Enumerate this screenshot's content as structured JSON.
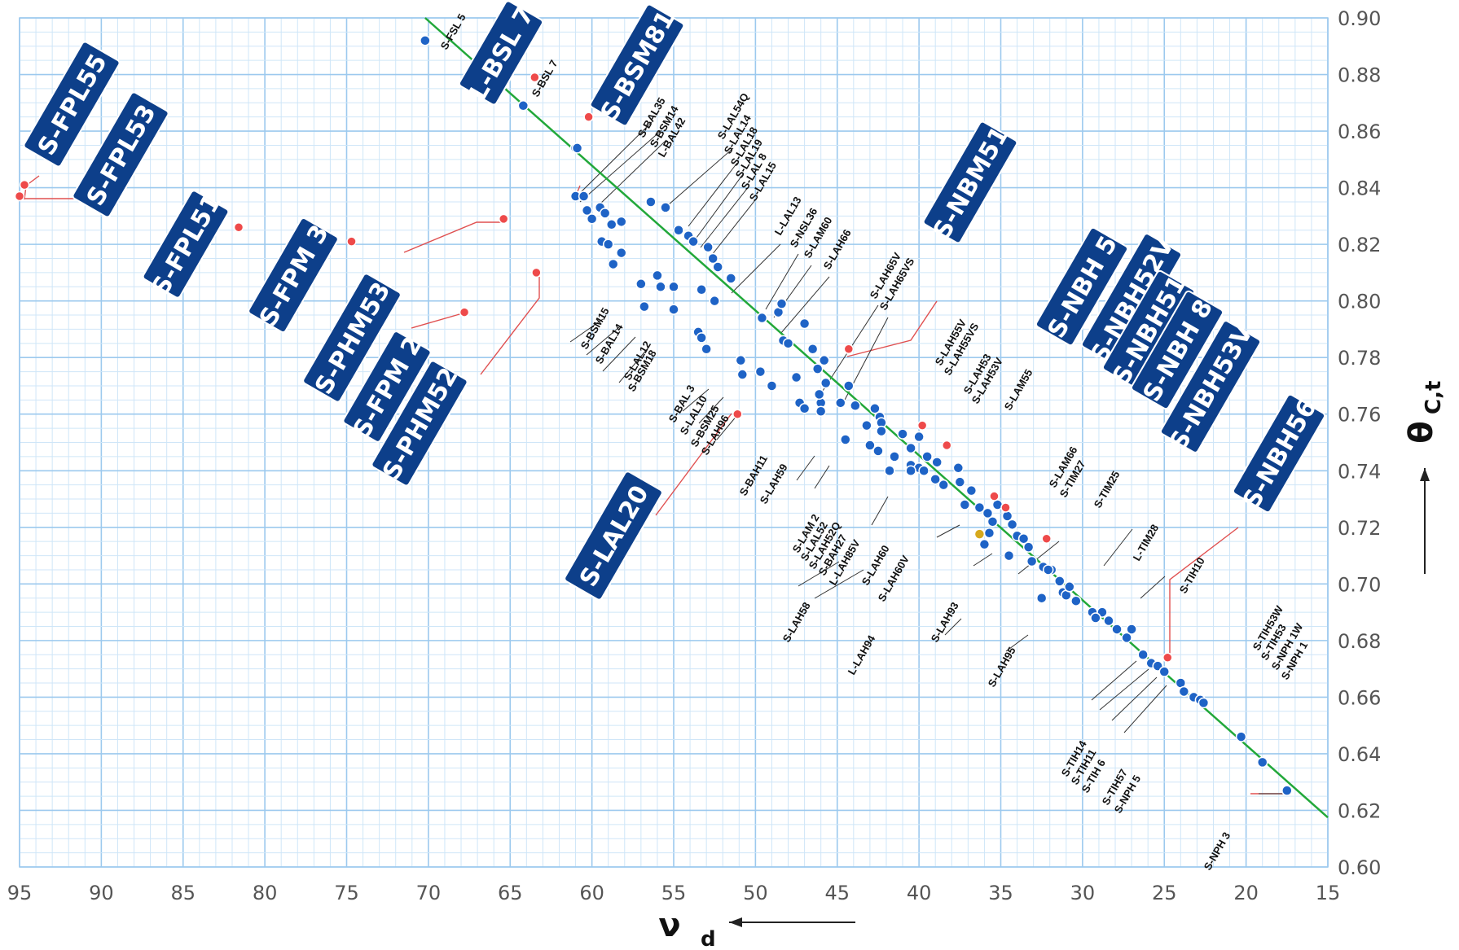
{
  "chart_data": {
    "type": "scatter",
    "xlabel": "ν",
    "xlabel_sub": "d",
    "ylabel": "θ",
    "ylabel_sub": "C,t",
    "xlim": [
      95,
      15
    ],
    "ylim": [
      0.6,
      0.9
    ],
    "x_ticks": [
      95,
      90,
      85,
      80,
      75,
      70,
      65,
      60,
      55,
      50,
      45,
      40,
      35,
      30,
      25,
      20,
      15
    ],
    "y_ticks": [
      "0.60",
      "0.62",
      "0.64",
      "0.66",
      "0.68",
      "0.70",
      "0.72",
      "0.74",
      "0.76",
      "0.78",
      "0.80",
      "0.82",
      "0.84",
      "0.86",
      "0.88",
      "0.90"
    ],
    "grid": true,
    "colors": {
      "grid_major": "#9cc9ee",
      "grid_minor": "#cfe6f8",
      "normal_line": "#22a83a",
      "normal_glass": "#1e63c6",
      "special_glass": "#ee4a4a",
      "box_fill": "#0d3f8a",
      "leader": "#333333"
    },
    "normal_line": {
      "x1": 70.2,
      "y1": 0.9,
      "x2": 15,
      "y2": 0.6175
    },
    "reference_point": {
      "x": 36.3,
      "y": 0.7176,
      "color": "#d7a91c"
    },
    "series": [
      {
        "values": [
          [
            70.2,
            0.892
          ],
          [
            64.2,
            0.869
          ],
          [
            61.0,
            0.854
          ],
          [
            60.9,
            0.854
          ],
          [
            61.0,
            0.837
          ],
          [
            60.5,
            0.837
          ],
          [
            60.3,
            0.832
          ],
          [
            60.0,
            0.829
          ],
          [
            59.5,
            0.833
          ],
          [
            59.2,
            0.831
          ],
          [
            58.8,
            0.827
          ],
          [
            58.2,
            0.828
          ],
          [
            59.4,
            0.821
          ],
          [
            59.0,
            0.82
          ],
          [
            58.2,
            0.817
          ],
          [
            58.7,
            0.813
          ],
          [
            56.4,
            0.835
          ],
          [
            55.5,
            0.833
          ],
          [
            54.7,
            0.825
          ],
          [
            54.1,
            0.823
          ],
          [
            53.8,
            0.821
          ],
          [
            52.9,
            0.819
          ],
          [
            52.6,
            0.815
          ],
          [
            52.3,
            0.812
          ],
          [
            51.5,
            0.808
          ],
          [
            53.3,
            0.804
          ],
          [
            52.5,
            0.8
          ],
          [
            57.0,
            0.806
          ],
          [
            56.0,
            0.809
          ],
          [
            55.8,
            0.805
          ],
          [
            55.0,
            0.805
          ],
          [
            56.8,
            0.798
          ],
          [
            55.0,
            0.797
          ],
          [
            53.5,
            0.789
          ],
          [
            53.3,
            0.787
          ],
          [
            53.0,
            0.783
          ],
          [
            49.6,
            0.794
          ],
          [
            48.6,
            0.796
          ],
          [
            48.4,
            0.799
          ],
          [
            47.0,
            0.792
          ],
          [
            48.3,
            0.786
          ],
          [
            48.0,
            0.785
          ],
          [
            46.5,
            0.783
          ],
          [
            45.8,
            0.779
          ],
          [
            50.9,
            0.779
          ],
          [
            50.8,
            0.774
          ],
          [
            49.7,
            0.775
          ],
          [
            49.0,
            0.77
          ],
          [
            47.5,
            0.773
          ],
          [
            46.2,
            0.776
          ],
          [
            44.3,
            0.77
          ],
          [
            44.8,
            0.764
          ],
          [
            45.7,
            0.771
          ],
          [
            46.0,
            0.764
          ],
          [
            46.0,
            0.761
          ],
          [
            42.7,
            0.762
          ],
          [
            43.2,
            0.756
          ],
          [
            43.9,
            0.763
          ],
          [
            47.3,
            0.764
          ],
          [
            47.0,
            0.762
          ],
          [
            46.1,
            0.767
          ],
          [
            44.5,
            0.751
          ],
          [
            43.0,
            0.749
          ],
          [
            42.5,
            0.747
          ],
          [
            42.4,
            0.759
          ],
          [
            42.3,
            0.757
          ],
          [
            42.3,
            0.754
          ],
          [
            41.0,
            0.753
          ],
          [
            41.5,
            0.745
          ],
          [
            40.5,
            0.748
          ],
          [
            40.0,
            0.752
          ],
          [
            39.5,
            0.745
          ],
          [
            40.5,
            0.742
          ],
          [
            40.0,
            0.741
          ],
          [
            39.7,
            0.74
          ],
          [
            40.5,
            0.74
          ],
          [
            41.8,
            0.74
          ],
          [
            38.9,
            0.743
          ],
          [
            39.0,
            0.737
          ],
          [
            38.5,
            0.735
          ],
          [
            37.6,
            0.741
          ],
          [
            37.5,
            0.736
          ],
          [
            36.8,
            0.733
          ],
          [
            37.2,
            0.728
          ],
          [
            36.3,
            0.727
          ],
          [
            35.8,
            0.725
          ],
          [
            35.2,
            0.728
          ],
          [
            34.6,
            0.724
          ],
          [
            34.3,
            0.721
          ],
          [
            35.5,
            0.722
          ],
          [
            34.0,
            0.717
          ],
          [
            33.6,
            0.716
          ],
          [
            33.3,
            0.713
          ],
          [
            36.0,
            0.714
          ],
          [
            35.7,
            0.718
          ],
          [
            34.5,
            0.71
          ],
          [
            33.1,
            0.708
          ],
          [
            32.4,
            0.706
          ],
          [
            31.9,
            0.705
          ],
          [
            31.4,
            0.701
          ],
          [
            32.1,
            0.705
          ],
          [
            31.2,
            0.697
          ],
          [
            31.0,
            0.696
          ],
          [
            30.4,
            0.694
          ],
          [
            30.8,
            0.699
          ],
          [
            29.4,
            0.69
          ],
          [
            28.8,
            0.69
          ],
          [
            29.2,
            0.688
          ],
          [
            28.4,
            0.687
          ],
          [
            27.9,
            0.684
          ],
          [
            27.3,
            0.681
          ],
          [
            27.0,
            0.684
          ],
          [
            26.3,
            0.675
          ],
          [
            25.8,
            0.672
          ],
          [
            25.4,
            0.671
          ],
          [
            25.0,
            0.669
          ],
          [
            24.0,
            0.665
          ],
          [
            23.8,
            0.662
          ],
          [
            23.2,
            0.66
          ],
          [
            22.8,
            0.659
          ],
          [
            32.5,
            0.695
          ],
          [
            22.6,
            0.658
          ],
          [
            20.3,
            0.646
          ],
          [
            19.0,
            0.637
          ],
          [
            17.5,
            0.627
          ]
        ]
      },
      {
        "values": [
          [
            63.5,
            0.879
          ],
          [
            60.2,
            0.865
          ],
          [
            94.7,
            0.841
          ],
          [
            95.0,
            0.837
          ],
          [
            81.6,
            0.826
          ],
          [
            74.7,
            0.821
          ],
          [
            65.4,
            0.829
          ],
          [
            63.4,
            0.81
          ],
          [
            67.8,
            0.796
          ],
          [
            51.1,
            0.76
          ],
          [
            44.3,
            0.783
          ],
          [
            39.8,
            0.756
          ],
          [
            38.3,
            0.749
          ],
          [
            35.4,
            0.731
          ],
          [
            34.7,
            0.727
          ],
          [
            32.2,
            0.716
          ],
          [
            24.8,
            0.674
          ]
        ]
      }
    ],
    "point_labels": [
      "S-FSL 5",
      "S-BSL 7",
      "S-BAL35",
      "S-BSM14",
      "L-BAL42",
      "S-LAL54Q",
      "S-LAL14",
      "S-LAL18",
      "S-LAL19",
      "S-LAL 8",
      "S-LAL15",
      "L-LAL13",
      "S-NSL36",
      "S-LAM60",
      "S-LAH66",
      "S-LAH65V",
      "S-LAH65VS",
      "S-LAH55V",
      "S-LAH55VS",
      "S-LAH53",
      "S-LAH53V",
      "S-LAM55",
      "S-LAM66",
      "S-TIM27",
      "S-TIM25",
      "L-TIM28",
      "S-TIH10",
      "S-TIH53W",
      "S-TIH53",
      "S-NPH 1W",
      "S-NPH 1",
      "S-BSM15",
      "S-BAL14",
      "S-LAL12",
      "S-BSM18",
      "S-BAL 3",
      "S-LAL10",
      "S-BSM25",
      "S-LAH96",
      "S-BAH11",
      "S-LAH59",
      "S-LAM 2",
      "S-LAL52",
      "S-LAH52Q",
      "S-BAH27",
      "L-LAH85V",
      "S-LAH60",
      "S-LAH60V",
      "S-LAH58",
      "L-LAH94",
      "S-LAH93",
      "S-LAH95",
      "S-TIH14",
      "S-TIH11",
      "S-TIH 6",
      "S-TIH57",
      "S-NPH 5",
      "S-NPH 3"
    ],
    "glass_boxes": [
      "S-FPL55",
      "S-FPL53",
      "L-BSL 7",
      "S-BSM81",
      "S-FPL51",
      "S-FPM 3",
      "S-PHM53",
      "S-FPM 2",
      "S-PHM52",
      "S-NBM51",
      "S-NBH 5",
      "S-NBH52V",
      "S-NBH51",
      "S-NBH 8",
      "S-NBH53V",
      "S-LAL20",
      "S-NBH56"
    ]
  }
}
